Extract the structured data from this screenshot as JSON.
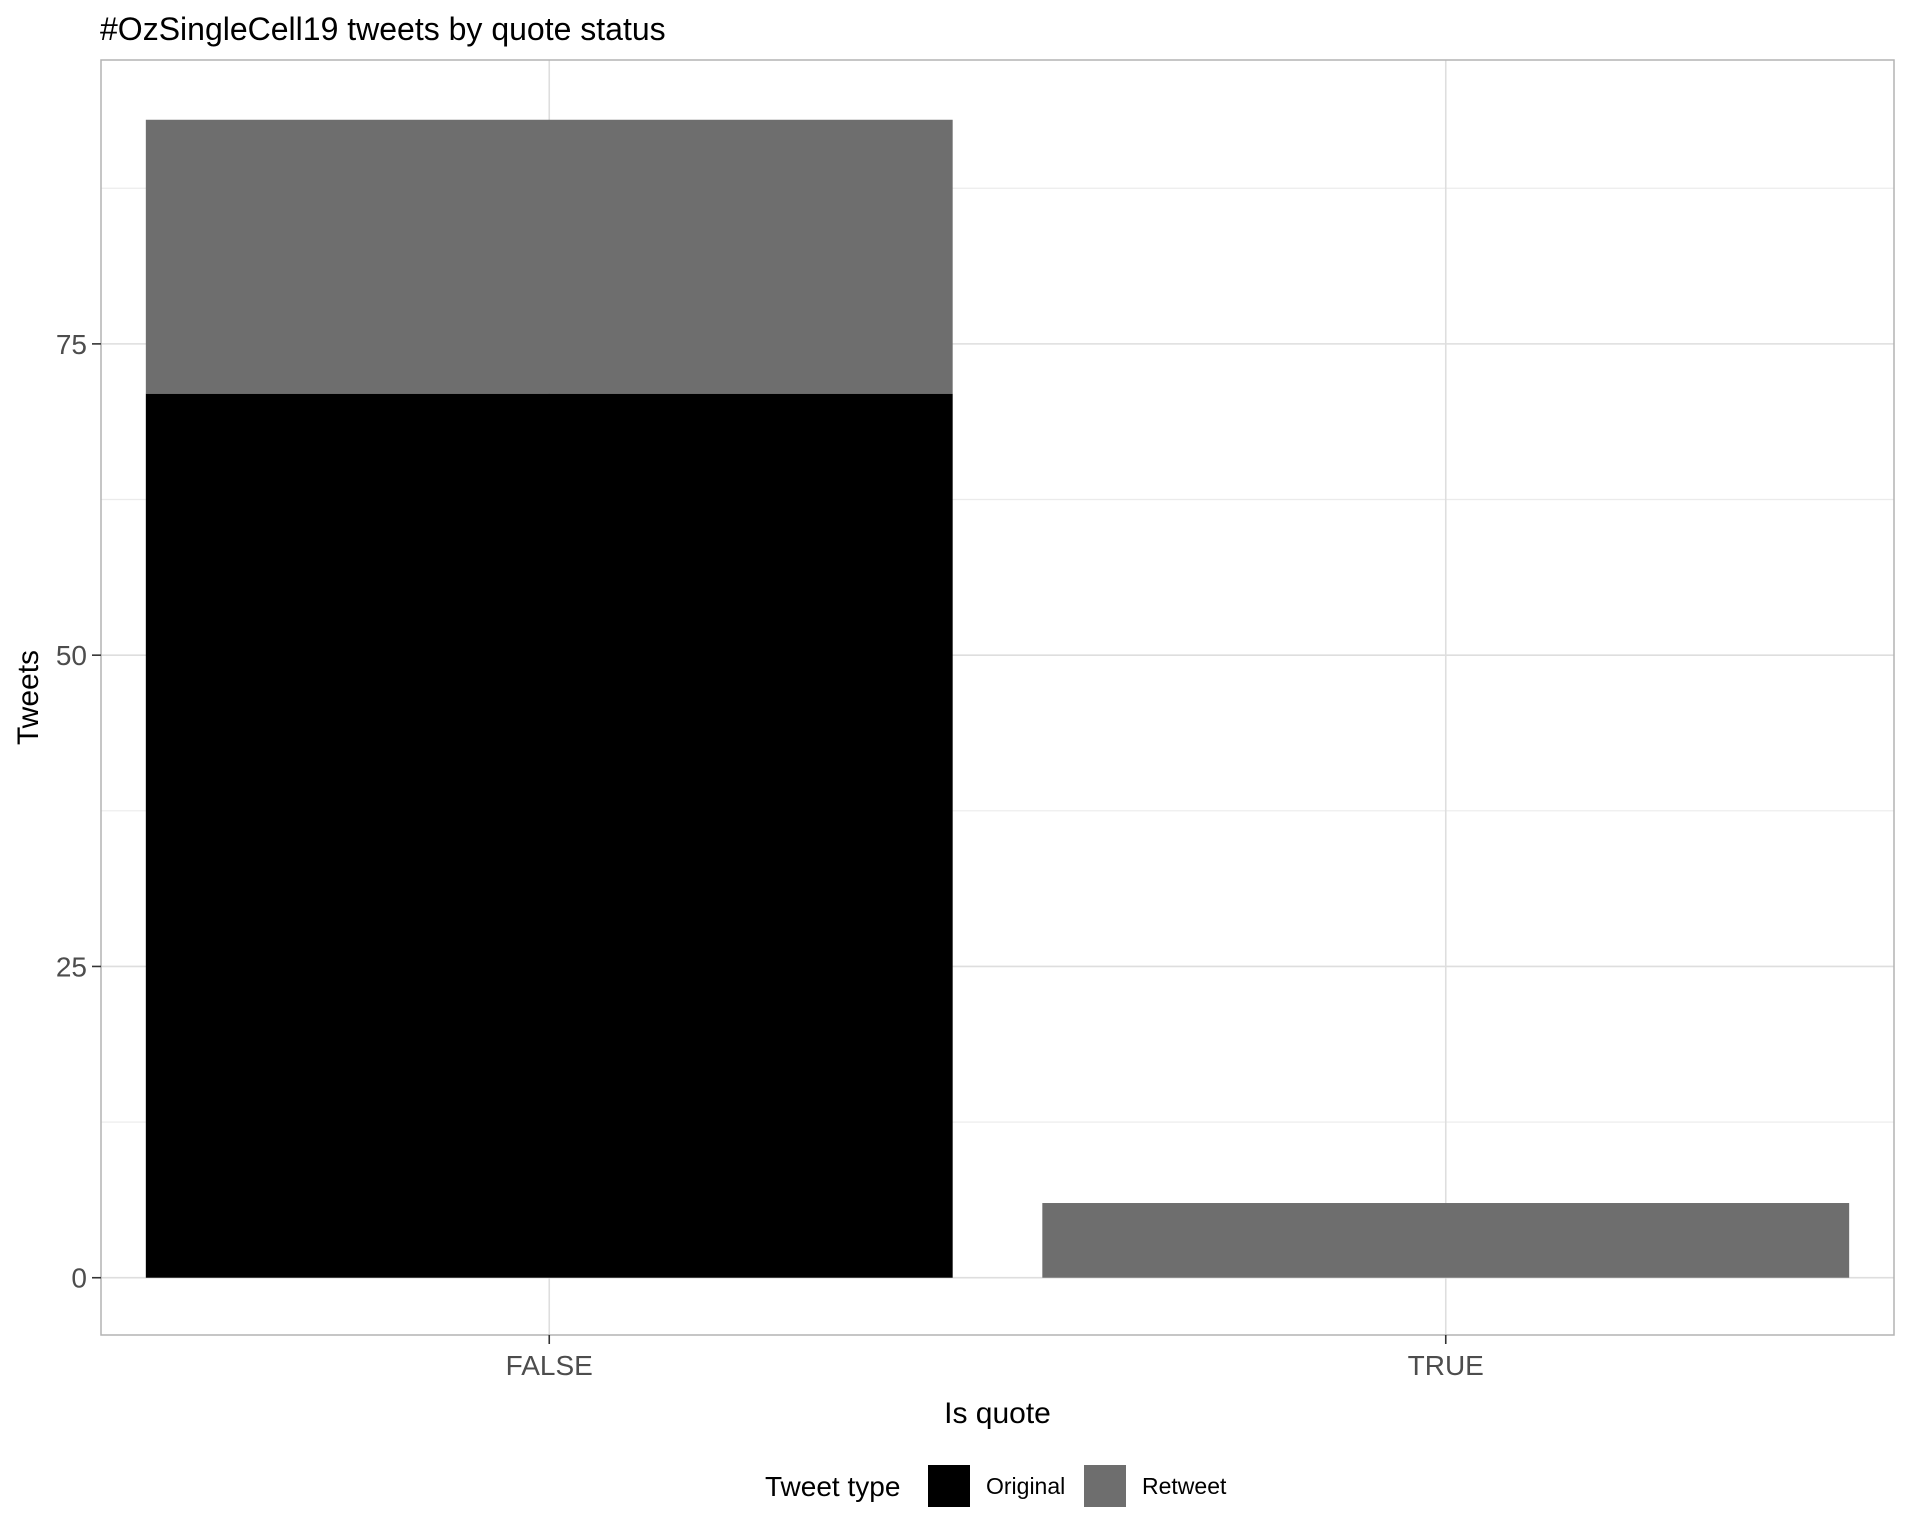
{
  "chart_data": {
    "type": "bar",
    "stacked": true,
    "title": "#OzSingleCell19 tweets by quote status",
    "xlabel": "Is quote",
    "ylabel": "Tweets",
    "categories": [
      "FALSE",
      "TRUE"
    ],
    "series": [
      {
        "name": "Original",
        "values": [
          71,
          0
        ],
        "color": "#000000"
      },
      {
        "name": "Retweet",
        "values": [
          22,
          6
        ],
        "color": "#6e6e6e"
      }
    ],
    "y_ticks": [
      0,
      25,
      50,
      75
    ],
    "ylim": [
      -4.6,
      97.8
    ],
    "grid": true,
    "legend": {
      "title": "Tweet type",
      "position": "bottom"
    }
  }
}
